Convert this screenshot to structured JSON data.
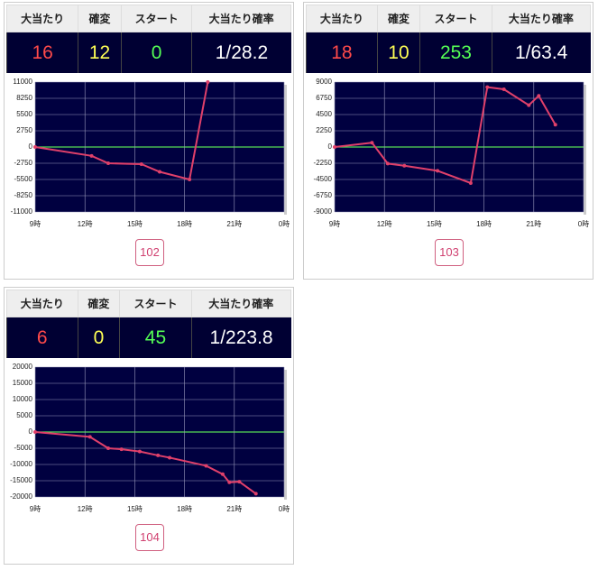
{
  "panels": [
    {
      "table": {
        "headers": [
          "大当たり",
          "確変",
          "スタート",
          "大当たり確率"
        ],
        "values": [
          16,
          12,
          0,
          "1/28.2"
        ]
      },
      "chart": {
        "type": "line",
        "color": "#e0406a",
        "x": [
          9,
          12.4,
          13.4,
          15.4,
          16.5,
          18.3,
          19.4
        ],
        "values": [
          0,
          -1500,
          -2750,
          -2900,
          -4200,
          -5500,
          11000
        ],
        "xlim": [
          9,
          24
        ],
        "xticks": [
          {
            "value": 9,
            "label": "9時"
          },
          {
            "value": 12,
            "label": "12時"
          },
          {
            "value": 15,
            "label": "15時"
          },
          {
            "value": 18,
            "label": "18時"
          },
          {
            "value": 21,
            "label": "21時"
          },
          {
            "value": 24,
            "label": "0時"
          }
        ],
        "ylim": [
          -11000,
          11000
        ],
        "yticks": [
          11000,
          8250,
          5500,
          2750,
          0,
          -2750,
          -5500,
          -8250,
          -11000
        ],
        "grid": true
      },
      "button": "102"
    },
    {
      "table": {
        "headers": [
          "大当たり",
          "確変",
          "スタート",
          "大当たり確率"
        ],
        "values": [
          18,
          10,
          253,
          "1/63.4"
        ]
      },
      "chart": {
        "type": "line",
        "color": "#e0406a",
        "x": [
          9,
          11.25,
          12.2,
          13.2,
          15.2,
          17.2,
          18.2,
          19.2,
          20.7,
          21.3,
          22.3
        ],
        "values": [
          0,
          600,
          -2300,
          -2600,
          -3300,
          -5000,
          8300,
          8000,
          5800,
          7100,
          3100
        ],
        "xlim": [
          9,
          24
        ],
        "xticks": [
          {
            "value": 9,
            "label": "9時"
          },
          {
            "value": 12,
            "label": "12時"
          },
          {
            "value": 15,
            "label": "15時"
          },
          {
            "value": 18,
            "label": "18時"
          },
          {
            "value": 21,
            "label": "21時"
          },
          {
            "value": 24,
            "label": "0時"
          }
        ],
        "ylim": [
          -9000,
          9000
        ],
        "yticks": [
          9000,
          6750,
          4500,
          2250,
          0,
          -2250,
          -4500,
          -6750,
          -9000
        ],
        "grid": true
      },
      "button": "103"
    },
    {
      "table": {
        "headers": [
          "大当たり",
          "確変",
          "スタート",
          "大当たり確率"
        ],
        "values": [
          6,
          0,
          45,
          "1/223.8"
        ]
      },
      "chart": {
        "type": "line",
        "color": "#e0406a",
        "x": [
          9,
          12.3,
          13.4,
          14.2,
          15.3,
          16.4,
          17.1,
          19.3,
          20.3,
          20.7,
          21.3,
          22.3
        ],
        "values": [
          0,
          -1500,
          -5000,
          -5300,
          -6000,
          -7200,
          -7900,
          -10400,
          -13000,
          -15500,
          -15300,
          -19000
        ],
        "xlim": [
          9,
          24
        ],
        "xticks": [
          {
            "value": 9,
            "label": "9時"
          },
          {
            "value": 12,
            "label": "12時"
          },
          {
            "value": 15,
            "label": "15時"
          },
          {
            "value": 18,
            "label": "18時"
          },
          {
            "value": 21,
            "label": "21時"
          },
          {
            "value": 24,
            "label": "0時"
          }
        ],
        "ylim": [
          -20000,
          20000
        ],
        "yticks": [
          20000,
          15000,
          10000,
          5000,
          0,
          -5000,
          -10000,
          -15000,
          -20000
        ],
        "grid": true
      },
      "button": "104"
    }
  ]
}
